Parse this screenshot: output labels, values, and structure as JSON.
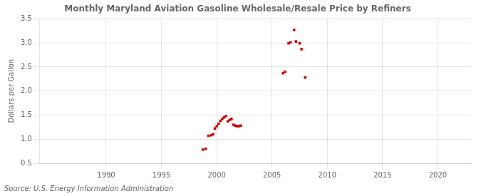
{
  "chart_data": {
    "type": "scatter",
    "title": "Monthly Maryland Aviation Gasoline Wholesale/Resale Price by Refiners",
    "y_label": "Dollars per Gallon",
    "annotations": [
      "Source: U.S. Energy Information Administration"
    ],
    "color": "#cc0000",
    "marker": "square",
    "grid": true,
    "xlim": [
      1984,
      2023
    ],
    "ylim": [
      0.5,
      3.5
    ],
    "xticks": [
      1990,
      1995,
      2000,
      2005,
      2010,
      2015,
      2020
    ],
    "yticks": [
      0.5,
      {
        "value": 1.0,
        "label": "1.0"
      },
      1.5,
      {
        "value": 2.0,
        "label": "2.0"
      },
      2.5,
      {
        "value": 3.0,
        "label": "3.0"
      },
      3.5
    ],
    "x": [
      1998.75,
      1999.0,
      1999.25,
      1999.5,
      1999.67,
      1999.83,
      2000.0,
      2000.17,
      2000.33,
      2000.5,
      2000.67,
      2000.83,
      2001.0,
      2001.17,
      2001.33,
      2001.5,
      2001.67,
      2001.83,
      2002.0,
      2002.17,
      2006.0,
      2006.17,
      2006.5,
      2006.67,
      2007.0,
      2007.17,
      2007.5,
      2007.67,
      2008.0
    ],
    "values": [
      0.78,
      0.8,
      1.07,
      1.08,
      1.1,
      1.22,
      1.27,
      1.32,
      1.38,
      1.42,
      1.45,
      1.48,
      1.37,
      1.4,
      1.42,
      1.3,
      1.28,
      1.27,
      1.27,
      1.28,
      2.37,
      2.4,
      2.99,
      3.01,
      3.27,
      3.03,
      2.99,
      2.87,
      2.28
    ]
  }
}
